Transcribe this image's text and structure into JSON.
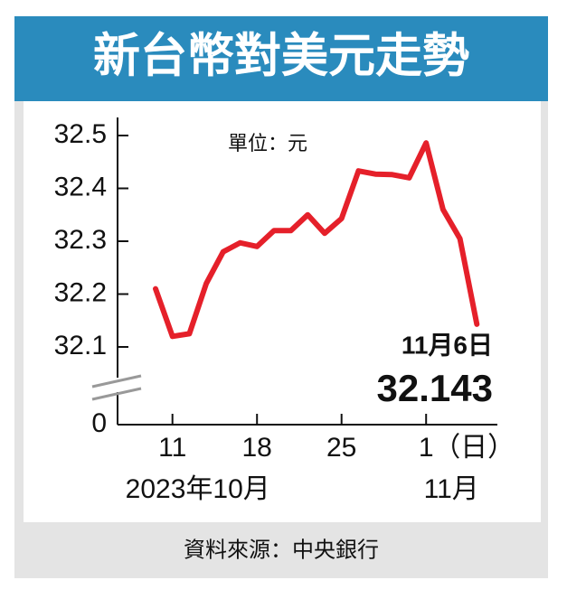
{
  "chart_data": {
    "type": "line",
    "title": "新台幣對美元走勢",
    "unit": "單位：元",
    "source": "資料來源：中央銀行",
    "categories": [
      null,
      "11",
      null,
      null,
      null,
      null,
      "18",
      null,
      null,
      null,
      null,
      "25",
      null,
      null,
      null,
      null,
      "1",
      null,
      null,
      null
    ],
    "x_unit": "（日）",
    "month_labels": [
      {
        "index": 1,
        "label": "2023年10月"
      },
      {
        "index": 16,
        "label": "11月"
      }
    ],
    "series": [
      {
        "name": "新台幣對美元",
        "color": "#e5202a",
        "values": [
          32.21,
          32.12,
          32.125,
          32.22,
          32.28,
          32.297,
          32.29,
          32.32,
          32.32,
          32.35,
          32.315,
          32.343,
          32.433,
          32.427,
          32.426,
          32.42,
          32.486,
          32.36,
          32.305,
          32.143
        ]
      }
    ],
    "annotation": {
      "index": 19,
      "date": "11月6日"
    },
    "ylim": [
      32.05,
      32.5
    ],
    "yticks": [
      0,
      32.1,
      32.2,
      32.3,
      32.4,
      32.5
    ],
    "axis_break": true,
    "title_color": "#2a8bbd"
  }
}
